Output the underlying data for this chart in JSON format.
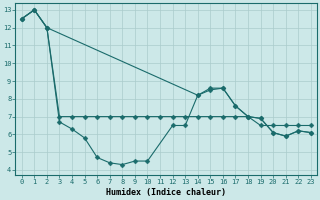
{
  "xlabel": "Humidex (Indice chaleur)",
  "bg_color": "#cce8e8",
  "line_color": "#1a6b6b",
  "grid_color": "#aacccc",
  "xlim": [
    -0.5,
    23.5
  ],
  "ylim": [
    3.7,
    13.4
  ],
  "yticks": [
    4,
    5,
    6,
    7,
    8,
    9,
    10,
    11,
    12,
    13
  ],
  "xticks": [
    0,
    1,
    2,
    3,
    4,
    5,
    6,
    7,
    8,
    9,
    10,
    11,
    12,
    13,
    14,
    15,
    16,
    17,
    18,
    19,
    20,
    21,
    22,
    23
  ],
  "line1_x": [
    0,
    1,
    2,
    3,
    4,
    5,
    6,
    7,
    8,
    9,
    10,
    12,
    13,
    14,
    15,
    16,
    17,
    18,
    19,
    20,
    21,
    22,
    23
  ],
  "line1_y": [
    12.5,
    13.0,
    12.0,
    6.7,
    6.3,
    5.8,
    4.7,
    4.4,
    4.3,
    4.5,
    4.5,
    6.5,
    6.5,
    8.2,
    8.5,
    8.6,
    7.6,
    7.0,
    6.9,
    6.1,
    5.9,
    6.2,
    6.1
  ],
  "line2_x": [
    0,
    1,
    2,
    3,
    4,
    5,
    6,
    7,
    8,
    9,
    10,
    11,
    12,
    13,
    14,
    15,
    16,
    17,
    18,
    19,
    20,
    21,
    22,
    23
  ],
  "line2_y": [
    12.5,
    13.0,
    12.0,
    7.0,
    7.0,
    7.0,
    7.0,
    7.0,
    7.0,
    7.0,
    7.0,
    7.0,
    7.0,
    7.0,
    7.0,
    7.0,
    7.0,
    7.0,
    7.0,
    6.5,
    6.5,
    6.5,
    6.5,
    6.5
  ],
  "line3_x": [
    0,
    1,
    2,
    14,
    15,
    16,
    17,
    18,
    19,
    20,
    21,
    22,
    23
  ],
  "line3_y": [
    12.5,
    13.0,
    12.0,
    8.2,
    8.6,
    8.6,
    7.6,
    7.0,
    6.9,
    6.1,
    5.9,
    6.2,
    6.1
  ],
  "marker": "D",
  "marker_size": 2.5,
  "linewidth": 0.8,
  "tick_fontsize": 5.0,
  "label_fontsize": 6.0
}
